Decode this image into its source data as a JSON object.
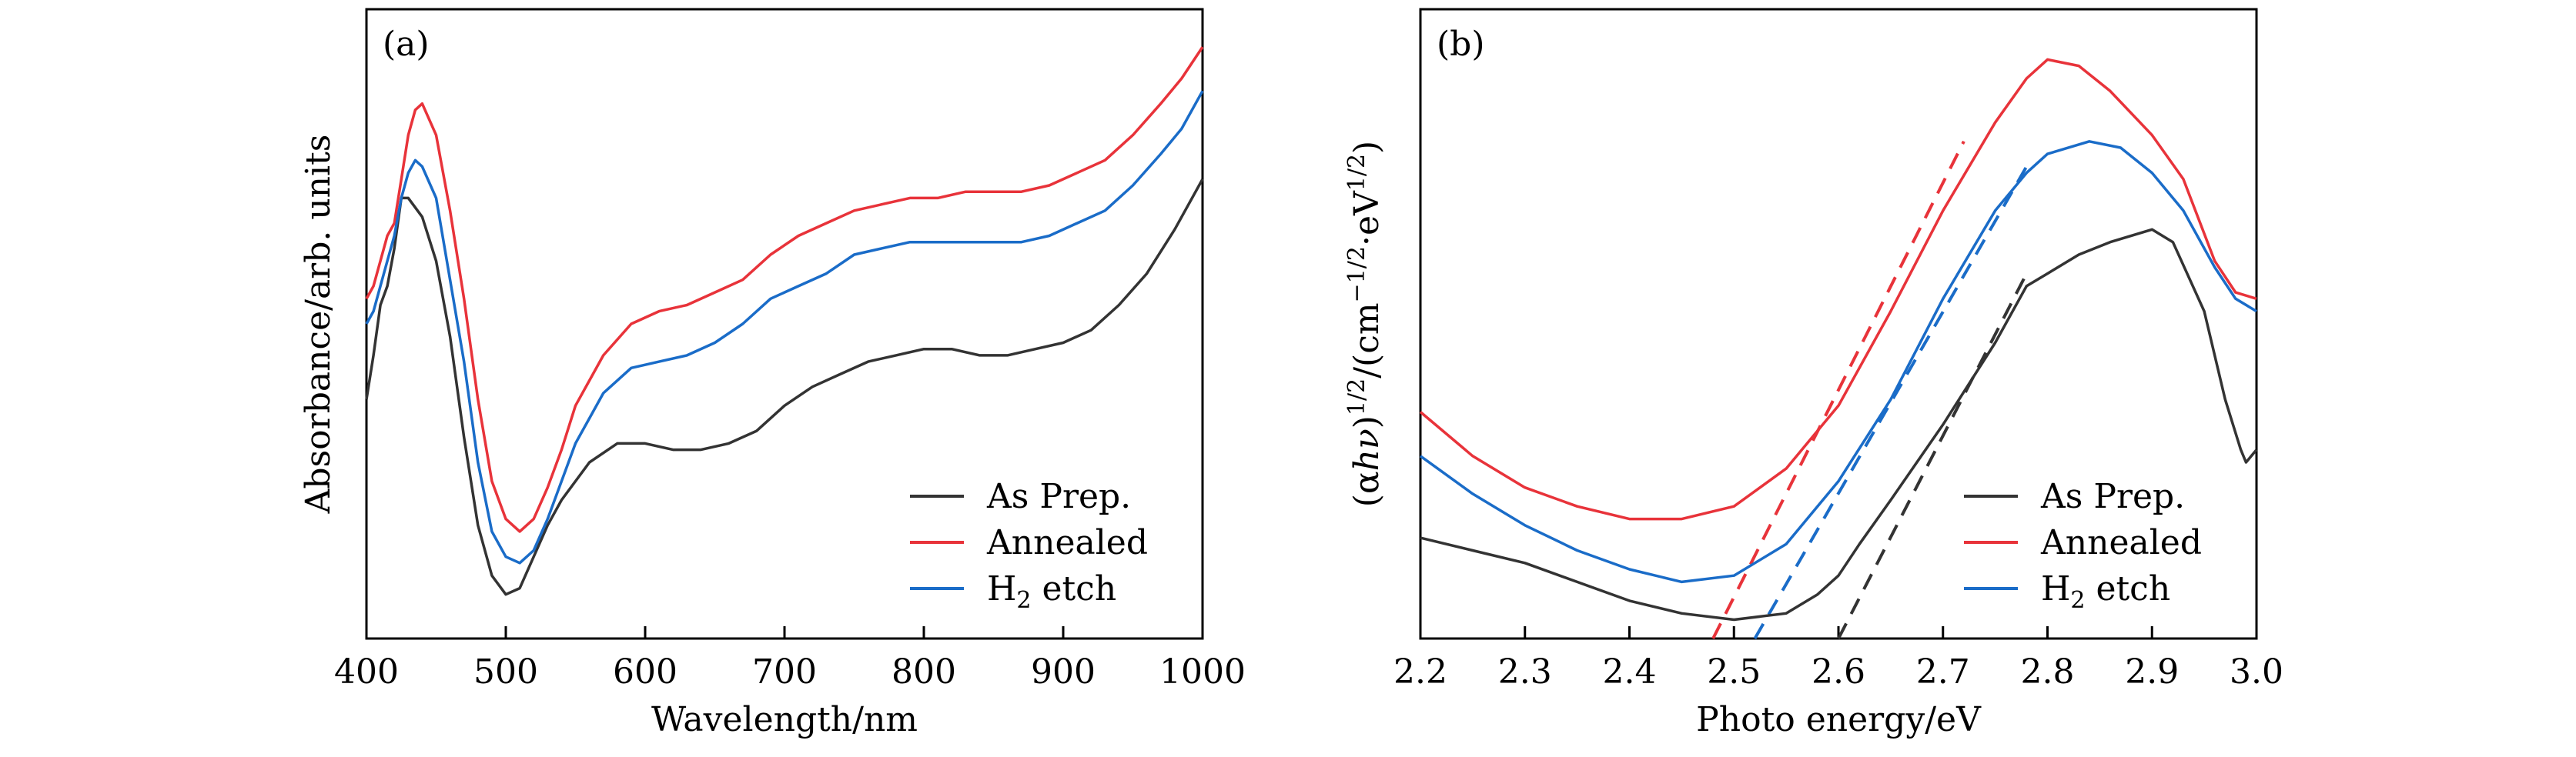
{
  "colors": {
    "as_prep": "#333333",
    "annealed": "#e8333a",
    "h2_etch": "#1a6cc8",
    "axis": "#000000"
  },
  "chart_data": [
    {
      "type": "line",
      "panel_label": "(a)",
      "xlabel": "Wavelength/nm",
      "ylabel": "Absorbance/arb. units",
      "xlim": [
        400,
        1000
      ],
      "ylim": [
        0,
        1
      ],
      "x_ticks": [
        400,
        500,
        600,
        700,
        800,
        900,
        1000
      ],
      "y_ticks": [],
      "y_tick_labels_shown": false,
      "grid": false,
      "legend_position": "bottom-right",
      "series": [
        {
          "name": "As Prep.",
          "color": "#333333",
          "points": [
            [
              400,
              0.38
            ],
            [
              405,
              0.45
            ],
            [
              410,
              0.53
            ],
            [
              415,
              0.56
            ],
            [
              420,
              0.62
            ],
            [
              425,
              0.7
            ],
            [
              430,
              0.7
            ],
            [
              440,
              0.67
            ],
            [
              450,
              0.6
            ],
            [
              460,
              0.48
            ],
            [
              470,
              0.32
            ],
            [
              480,
              0.18
            ],
            [
              490,
              0.1
            ],
            [
              500,
              0.07
            ],
            [
              510,
              0.08
            ],
            [
              520,
              0.13
            ],
            [
              530,
              0.18
            ],
            [
              540,
              0.22
            ],
            [
              550,
              0.25
            ],
            [
              560,
              0.28
            ],
            [
              580,
              0.31
            ],
            [
              600,
              0.31
            ],
            [
              620,
              0.3
            ],
            [
              640,
              0.3
            ],
            [
              660,
              0.31
            ],
            [
              680,
              0.33
            ],
            [
              700,
              0.37
            ],
            [
              720,
              0.4
            ],
            [
              740,
              0.42
            ],
            [
              760,
              0.44
            ],
            [
              780,
              0.45
            ],
            [
              800,
              0.46
            ],
            [
              820,
              0.46
            ],
            [
              840,
              0.45
            ],
            [
              860,
              0.45
            ],
            [
              880,
              0.46
            ],
            [
              900,
              0.47
            ],
            [
              920,
              0.49
            ],
            [
              940,
              0.53
            ],
            [
              960,
              0.58
            ],
            [
              980,
              0.65
            ],
            [
              1000,
              0.73
            ]
          ]
        },
        {
          "name": "Annealed",
          "color": "#e8333a",
          "points": [
            [
              400,
              0.54
            ],
            [
              405,
              0.56
            ],
            [
              410,
              0.6
            ],
            [
              415,
              0.64
            ],
            [
              420,
              0.66
            ],
            [
              425,
              0.73
            ],
            [
              430,
              0.8
            ],
            [
              435,
              0.84
            ],
            [
              440,
              0.85
            ],
            [
              450,
              0.8
            ],
            [
              460,
              0.68
            ],
            [
              470,
              0.54
            ],
            [
              480,
              0.38
            ],
            [
              490,
              0.25
            ],
            [
              500,
              0.19
            ],
            [
              510,
              0.17
            ],
            [
              520,
              0.19
            ],
            [
              530,
              0.24
            ],
            [
              540,
              0.3
            ],
            [
              550,
              0.37
            ],
            [
              570,
              0.45
            ],
            [
              590,
              0.5
            ],
            [
              610,
              0.52
            ],
            [
              630,
              0.53
            ],
            [
              650,
              0.55
            ],
            [
              670,
              0.57
            ],
            [
              690,
              0.61
            ],
            [
              710,
              0.64
            ],
            [
              730,
              0.66
            ],
            [
              750,
              0.68
            ],
            [
              770,
              0.69
            ],
            [
              790,
              0.7
            ],
            [
              810,
              0.7
            ],
            [
              830,
              0.71
            ],
            [
              850,
              0.71
            ],
            [
              870,
              0.71
            ],
            [
              890,
              0.72
            ],
            [
              910,
              0.74
            ],
            [
              930,
              0.76
            ],
            [
              950,
              0.8
            ],
            [
              970,
              0.85
            ],
            [
              985,
              0.89
            ],
            [
              1000,
              0.94
            ]
          ]
        },
        {
          "name": "H2 etch",
          "color": "#1a6cc8",
          "points": [
            [
              400,
              0.5
            ],
            [
              405,
              0.52
            ],
            [
              410,
              0.56
            ],
            [
              415,
              0.6
            ],
            [
              420,
              0.64
            ],
            [
              425,
              0.7
            ],
            [
              430,
              0.74
            ],
            [
              435,
              0.76
            ],
            [
              440,
              0.75
            ],
            [
              450,
              0.7
            ],
            [
              460,
              0.57
            ],
            [
              470,
              0.44
            ],
            [
              480,
              0.28
            ],
            [
              490,
              0.17
            ],
            [
              500,
              0.13
            ],
            [
              510,
              0.12
            ],
            [
              520,
              0.14
            ],
            [
              530,
              0.19
            ],
            [
              540,
              0.25
            ],
            [
              550,
              0.31
            ],
            [
              570,
              0.39
            ],
            [
              590,
              0.43
            ],
            [
              610,
              0.44
            ],
            [
              630,
              0.45
            ],
            [
              650,
              0.47
            ],
            [
              670,
              0.5
            ],
            [
              690,
              0.54
            ],
            [
              710,
              0.56
            ],
            [
              730,
              0.58
            ],
            [
              750,
              0.61
            ],
            [
              770,
              0.62
            ],
            [
              790,
              0.63
            ],
            [
              810,
              0.63
            ],
            [
              830,
              0.63
            ],
            [
              850,
              0.63
            ],
            [
              870,
              0.63
            ],
            [
              890,
              0.64
            ],
            [
              910,
              0.66
            ],
            [
              930,
              0.68
            ],
            [
              950,
              0.72
            ],
            [
              970,
              0.77
            ],
            [
              985,
              0.81
            ],
            [
              1000,
              0.87
            ]
          ]
        }
      ]
    },
    {
      "type": "line",
      "panel_label": "(b)",
      "xlabel": "Photo energy/eV",
      "ylabel": "(αhν)1/2/(cm−1/2·eV1/2)",
      "ylabel_parts": {
        "open": "(α",
        "h": "h",
        "nu": "ν",
        "close1": ")",
        "exp1": "1/2",
        "slash": "/(cm",
        "exp2": "−1/2",
        "dot": "·eV",
        "exp3": "1/2",
        "close2": ")"
      },
      "xlim": [
        2.2,
        3.0
      ],
      "ylim": [
        0,
        1
      ],
      "x_ticks": [
        2.2,
        2.3,
        2.4,
        2.5,
        2.6,
        2.7,
        2.8,
        2.9,
        3.0
      ],
      "x_tick_labels": [
        "2.2",
        "2.3",
        "2.4",
        "2.5",
        "2.6",
        "2.7",
        "2.8",
        "2.9",
        "3.0"
      ],
      "y_ticks": [],
      "y_tick_labels_shown": false,
      "grid": false,
      "legend_position": "bottom-right",
      "series": [
        {
          "name": "As Prep.",
          "color": "#333333",
          "points": [
            [
              2.2,
              0.16
            ],
            [
              2.25,
              0.14
            ],
            [
              2.3,
              0.12
            ],
            [
              2.35,
              0.09
            ],
            [
              2.4,
              0.06
            ],
            [
              2.45,
              0.04
            ],
            [
              2.5,
              0.03
            ],
            [
              2.55,
              0.04
            ],
            [
              2.58,
              0.07
            ],
            [
              2.6,
              0.1
            ],
            [
              2.62,
              0.15
            ],
            [
              2.65,
              0.22
            ],
            [
              2.7,
              0.34
            ],
            [
              2.75,
              0.47
            ],
            [
              2.78,
              0.56
            ],
            [
              2.8,
              0.58
            ],
            [
              2.83,
              0.61
            ],
            [
              2.86,
              0.63
            ],
            [
              2.9,
              0.65
            ],
            [
              2.92,
              0.63
            ],
            [
              2.95,
              0.52
            ],
            [
              2.97,
              0.38
            ],
            [
              2.985,
              0.3
            ],
            [
              2.99,
              0.28
            ],
            [
              3.0,
              0.3
            ]
          ]
        },
        {
          "name": "Annealed",
          "color": "#e8333a",
          "points": [
            [
              2.2,
              0.36
            ],
            [
              2.25,
              0.29
            ],
            [
              2.3,
              0.24
            ],
            [
              2.35,
              0.21
            ],
            [
              2.4,
              0.19
            ],
            [
              2.45,
              0.19
            ],
            [
              2.5,
              0.21
            ],
            [
              2.55,
              0.27
            ],
            [
              2.6,
              0.37
            ],
            [
              2.65,
              0.52
            ],
            [
              2.7,
              0.68
            ],
            [
              2.75,
              0.82
            ],
            [
              2.78,
              0.89
            ],
            [
              2.8,
              0.92
            ],
            [
              2.83,
              0.91
            ],
            [
              2.86,
              0.87
            ],
            [
              2.9,
              0.8
            ],
            [
              2.93,
              0.73
            ],
            [
              2.96,
              0.6
            ],
            [
              2.98,
              0.55
            ],
            [
              3.0,
              0.54
            ]
          ]
        },
        {
          "name": "H2 etch",
          "color": "#1a6cc8",
          "points": [
            [
              2.2,
              0.29
            ],
            [
              2.25,
              0.23
            ],
            [
              2.3,
              0.18
            ],
            [
              2.35,
              0.14
            ],
            [
              2.4,
              0.11
            ],
            [
              2.45,
              0.09
            ],
            [
              2.5,
              0.1
            ],
            [
              2.55,
              0.15
            ],
            [
              2.6,
              0.25
            ],
            [
              2.65,
              0.38
            ],
            [
              2.7,
              0.54
            ],
            [
              2.75,
              0.68
            ],
            [
              2.78,
              0.74
            ],
            [
              2.8,
              0.77
            ],
            [
              2.84,
              0.79
            ],
            [
              2.87,
              0.78
            ],
            [
              2.9,
              0.74
            ],
            [
              2.93,
              0.68
            ],
            [
              2.96,
              0.59
            ],
            [
              2.98,
              0.54
            ],
            [
              3.0,
              0.52
            ]
          ]
        }
      ],
      "tangent_lines": [
        {
          "series": "As Prep.",
          "color": "#333333",
          "from": [
            2.6,
            0.0
          ],
          "to": [
            2.78,
            0.58
          ]
        },
        {
          "series": "Annealed",
          "color": "#e8333a",
          "from": [
            2.48,
            0.0
          ],
          "to": [
            2.72,
            0.79
          ]
        },
        {
          "series": "H2 etch",
          "color": "#1a6cc8",
          "from": [
            2.52,
            0.0
          ],
          "to": [
            2.78,
            0.75
          ]
        }
      ]
    }
  ],
  "legend": {
    "items": [
      {
        "label": "As Prep.",
        "color": "#333333",
        "base": "As Prep.",
        "sub": "",
        "rest": ""
      },
      {
        "label": "Annealed",
        "color": "#e8333a",
        "base": "Annealed",
        "sub": "",
        "rest": ""
      },
      {
        "label": "H2 etch",
        "color": "#1a6cc8",
        "base": "H",
        "sub": "2",
        "rest": " etch"
      }
    ]
  }
}
